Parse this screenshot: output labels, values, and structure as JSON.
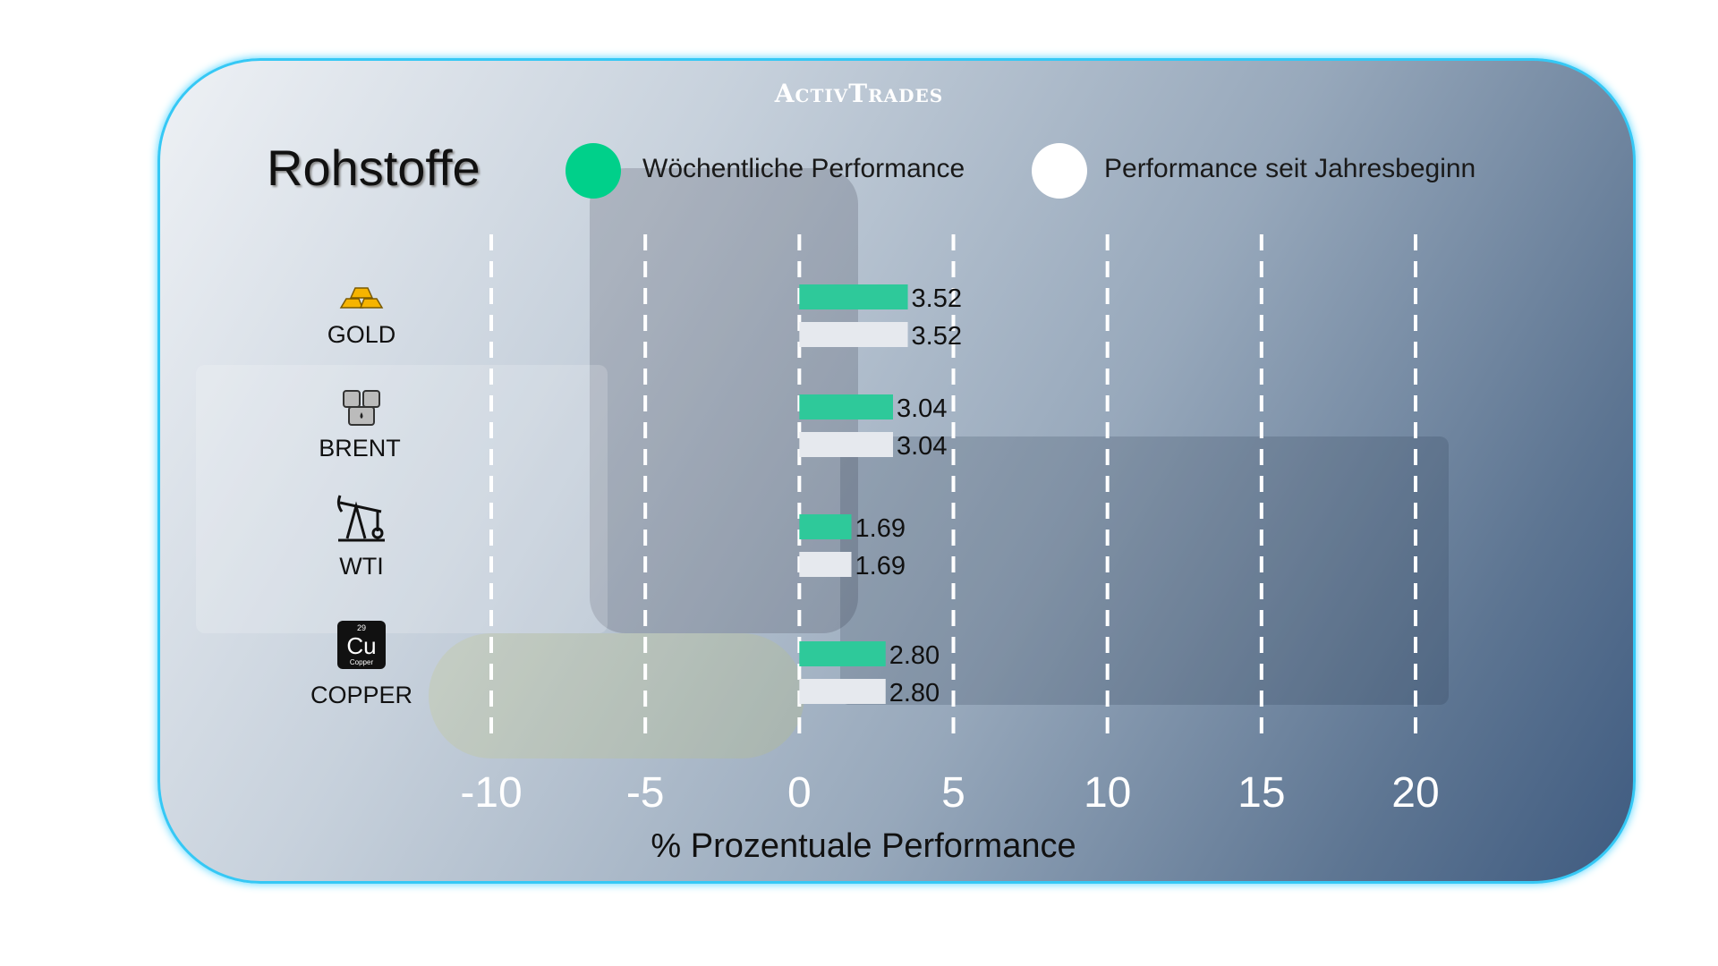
{
  "brand": "ActivTrades",
  "title": "Rohstoffe",
  "colors": {
    "weekly": "#2ec99a",
    "ytd": "#e6e9ee",
    "grid": "#ffffff",
    "border": "#35c8f5"
  },
  "legend": [
    {
      "label": "Wöchentliche Performance",
      "color": "#00d08a"
    },
    {
      "label": "Performance seit Jahresbeginn",
      "color": "#ffffff"
    }
  ],
  "chart_data": {
    "type": "bar",
    "orientation": "horizontal",
    "title": "Rohstoffe",
    "categories": [
      "GOLD",
      "BRENT",
      "WTI",
      "COPPER"
    ],
    "category_icons": [
      "gold-bars-icon",
      "oil-barrels-icon",
      "oil-pump-icon",
      "copper-element-icon"
    ],
    "series": [
      {
        "name": "Wöchentliche Performance",
        "values": [
          3.52,
          3.04,
          1.69,
          2.8
        ]
      },
      {
        "name": "Performance seit Jahresbeginn",
        "values": [
          3.52,
          3.04,
          1.69,
          2.8
        ]
      }
    ],
    "xlabel": "% Prozentuale Performance",
    "xlim": [
      -10,
      20
    ],
    "xticks": [
      "-10",
      "-5",
      "0",
      "5",
      "10",
      "15",
      "20"
    ],
    "grid": "vertical dashed",
    "legend": "top"
  }
}
